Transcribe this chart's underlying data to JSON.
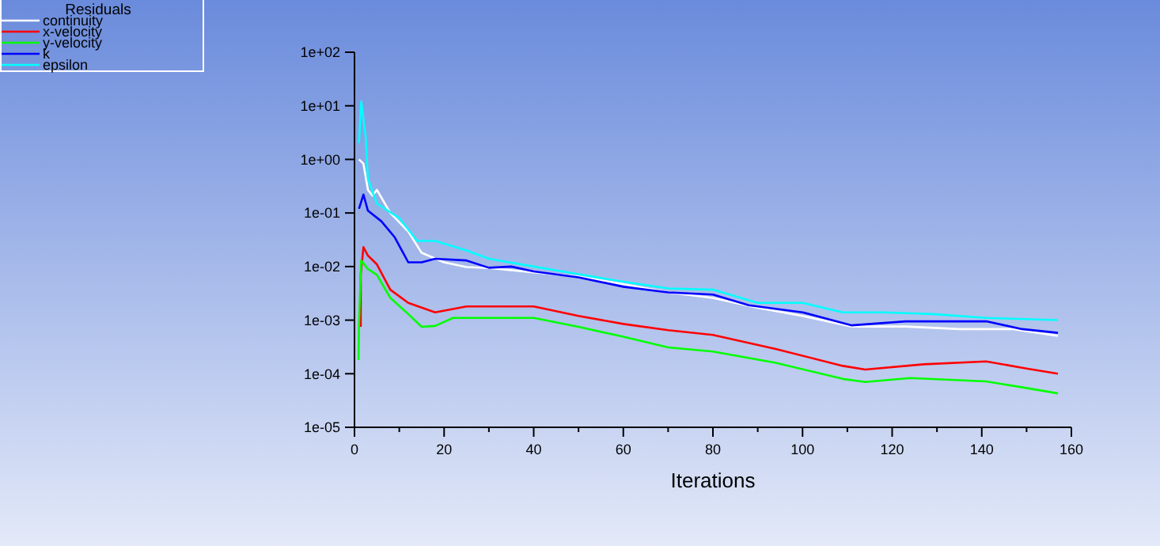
{
  "chart_data": {
    "type": "line",
    "legend_title": "Residuals",
    "xlabel": "Iterations",
    "legend": "top left",
    "log": "y",
    "grid": false,
    "line_style": "solid",
    "marker": "none",
    "xlim": [
      0,
      160
    ],
    "xticks": [
      0,
      {
        "value": 10,
        "label": null
      },
      20,
      {
        "value": 30,
        "label": null
      },
      40,
      {
        "value": 50,
        "label": null
      },
      60,
      {
        "value": 70,
        "label": null
      },
      80,
      {
        "value": 90,
        "label": null
      },
      100,
      {
        "value": 110,
        "label": null
      },
      120,
      {
        "value": 130,
        "label": null
      },
      140,
      {
        "value": 150,
        "label": null
      },
      160
    ],
    "ylim": [
      1e-05,
      100
    ],
    "yticks": [
      {
        "value": 1e-05,
        "label": "1e-05"
      },
      {
        "value": 0.0001,
        "label": "1e-04"
      },
      {
        "value": 0.001,
        "label": "1e-03"
      },
      {
        "value": 0.01,
        "label": "1e-02"
      },
      {
        "value": 0.1,
        "label": "1e-01"
      },
      {
        "value": 1,
        "label": "1e+00"
      },
      {
        "value": 10,
        "label": "1e+01"
      },
      {
        "value": 100,
        "label": "1e+02"
      }
    ],
    "series": [
      {
        "name": "continuity",
        "color": "#ffffff",
        "x": [
          1,
          2,
          3,
          4,
          5,
          8,
          12,
          15,
          20,
          25,
          30,
          40,
          50,
          60,
          70,
          80,
          90,
          100,
          111,
          123,
          135,
          147,
          157
        ],
        "values": [
          1.0,
          0.83,
          0.27,
          0.21,
          0.27,
          0.1,
          0.045,
          0.018,
          0.012,
          0.0098,
          0.0094,
          0.0078,
          0.0065,
          0.0047,
          0.0033,
          0.0026,
          0.0017,
          0.0012,
          0.00076,
          0.00076,
          0.00068,
          0.00068,
          0.00051
        ]
      },
      {
        "name": "x-velocity",
        "color": "#ff0000",
        "x": [
          1.4,
          1.4,
          2,
          3,
          5,
          8,
          12,
          18,
          25,
          40,
          50,
          60,
          70,
          80,
          94,
          109,
          114,
          127,
          141,
          150,
          157
        ],
        "values": [
          0.00075,
          0.0072,
          0.023,
          0.016,
          0.011,
          0.0037,
          0.0021,
          0.0014,
          0.0018,
          0.0018,
          0.0012,
          0.00085,
          0.00065,
          0.00053,
          0.00029,
          0.00014,
          0.00012,
          0.00015,
          0.00017,
          0.000125,
          0.0001
        ]
      },
      {
        "name": "y-velocity",
        "color": "#00ff00",
        "x": [
          0.9,
          1,
          1.5,
          3,
          5,
          8,
          12,
          15,
          18,
          22,
          30,
          40,
          50,
          60,
          70,
          80,
          94,
          109,
          114,
          124,
          141,
          150,
          157
        ],
        "values": [
          0.00018,
          0.0008,
          0.013,
          0.009,
          0.007,
          0.0026,
          0.0013,
          0.00075,
          0.00078,
          0.0011,
          0.0011,
          0.0011,
          0.00075,
          0.00049,
          0.00031,
          0.00026,
          0.00016,
          8e-05,
          7e-05,
          8.3e-05,
          7.2e-05,
          5.4e-05,
          4.3e-05
        ]
      },
      {
        "name": "k",
        "color": "#0000ff",
        "x": [
          1,
          2,
          3,
          6,
          9,
          12,
          15,
          18,
          25,
          30,
          35,
          40,
          50,
          60,
          70,
          80,
          88,
          100,
          111,
          123,
          141,
          149,
          157
        ],
        "values": [
          0.12,
          0.22,
          0.11,
          0.07,
          0.035,
          0.012,
          0.012,
          0.014,
          0.013,
          0.0095,
          0.01,
          0.0081,
          0.0063,
          0.0042,
          0.0033,
          0.003,
          0.0019,
          0.0014,
          0.0008,
          0.00095,
          0.00095,
          0.00068,
          0.00058
        ]
      },
      {
        "name": "epsilon",
        "color": "#00ffff",
        "x": [
          1,
          1.5,
          2.5,
          3,
          5,
          10,
          14,
          18,
          25,
          30,
          40,
          50,
          60,
          70,
          80,
          90,
          100,
          109,
          118,
          129,
          141,
          157
        ],
        "values": [
          2,
          12,
          2.6,
          0.43,
          0.15,
          0.08,
          0.03,
          0.03,
          0.02,
          0.014,
          0.01,
          0.0072,
          0.0052,
          0.0039,
          0.0037,
          0.0021,
          0.0021,
          0.0014,
          0.0014,
          0.0013,
          0.0011,
          0.001
        ]
      }
    ]
  }
}
